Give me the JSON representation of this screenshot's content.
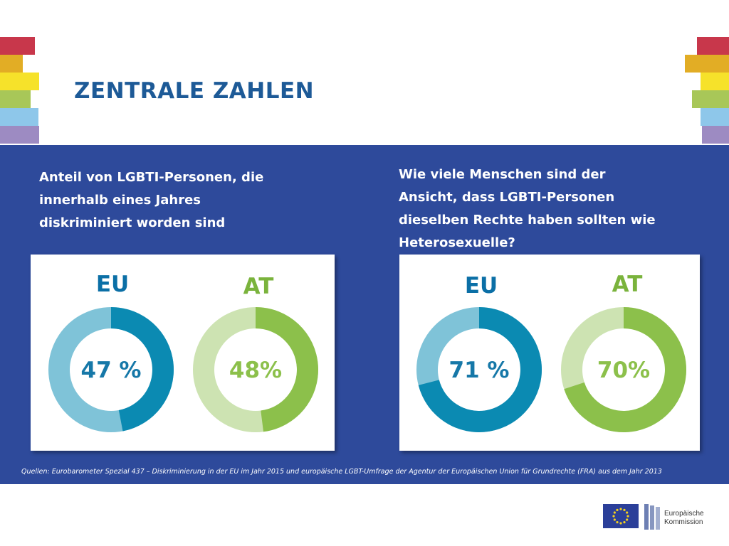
{
  "title": "ZENTRALE ZAHLEN",
  "decoration": {
    "stripe_colors": [
      "#c8374b",
      "#e2ad25",
      "#f6e22a",
      "#a8c758",
      "#8ec7ea",
      "#9d8bc2"
    ]
  },
  "questions": {
    "left": [
      "Anteil von LGBTI-Personen, die",
      "innerhalb eines Jahres",
      "diskriminiert worden sind"
    ],
    "right": [
      "Wie viele Menschen sind der",
      "Ansicht, dass LGBTI-Personen",
      "dieselben Rechte haben sollten wie",
      "Heterosexuelle?"
    ]
  },
  "chart_data": [
    {
      "type": "pie",
      "variant": "donut",
      "title": "Anteil von LGBTI-Personen, die innerhalb eines Jahres diskriminiert worden sind",
      "donuts": [
        {
          "region": "EU",
          "value": 47,
          "label": "47 %",
          "color": "#0b8ab2",
          "track_color": "#7fc3d8"
        },
        {
          "region": "AT",
          "value": 48,
          "label": "48%",
          "color": "#8cc04b",
          "track_color": "#cde3b2"
        }
      ]
    },
    {
      "type": "pie",
      "variant": "donut",
      "title": "Wie viele Menschen sind der Ansicht, dass LGBTI-Personen dieselben Rechte haben sollten wie Heterosexuelle?",
      "donuts": [
        {
          "region": "EU",
          "value": 71,
          "label": "71 %",
          "color": "#0b8ab2",
          "track_color": "#7fc3d8"
        },
        {
          "region": "AT",
          "value": 70,
          "label": "70%",
          "color": "#8cc04b",
          "track_color": "#cde3b2"
        }
      ]
    }
  ],
  "source": "Quellen: Eurobarometer Spezial 437 – Diskriminierung in der EU im Jahr 2015 und europäische LGBT-Umfrage der Agentur der Europäischen Union für Grundrechte (FRA) aus dem Jahr 2013",
  "logo": {
    "line1": "Europäische",
    "line2": "Kommission"
  },
  "colors": {
    "title": "#1d5a97",
    "band": "#2e4a9b",
    "eu_label": "#0b6fa6",
    "at_label": "#7ab33c",
    "eu_pct": "#1678a8",
    "at_pct": "#8cc04b"
  }
}
